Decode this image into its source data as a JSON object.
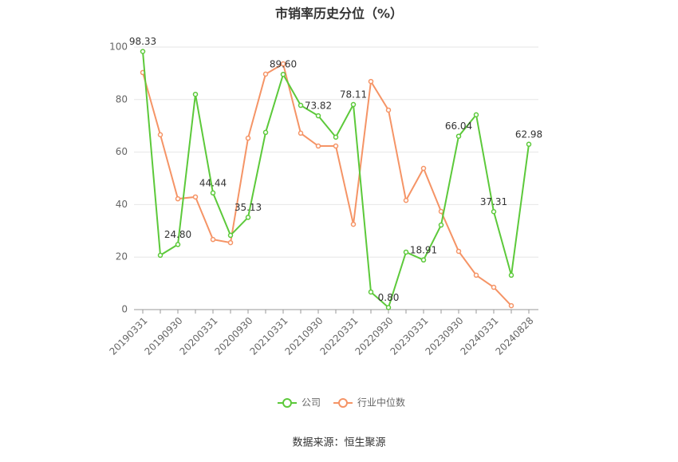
{
  "chart_data": {
    "type": "line",
    "title": "市销率历史分位（%）",
    "categories": [
      "20190331",
      null,
      "20190930",
      null,
      "20200331",
      null,
      "20200930",
      null,
      "20210331",
      null,
      "20210930",
      null,
      "20220331",
      null,
      "20220930",
      null,
      "20230331",
      null,
      "20230930",
      null,
      "20240331",
      null,
      "20240828"
    ],
    "series": [
      {
        "name": "公司",
        "color": "#5cc93a",
        "values": [
          98.33,
          20.7,
          24.8,
          82,
          44.44,
          28.3,
          35.13,
          67.5,
          89.6,
          77.8,
          73.82,
          65.7,
          78.11,
          6.7,
          0.8,
          21.9,
          18.91,
          32.2,
          66.04,
          74.2,
          37.31,
          13.1,
          62.98
        ],
        "value_labels": [
          "98.33",
          null,
          "24.80",
          null,
          "44.44",
          null,
          "35.13",
          null,
          "89.60",
          null,
          "73.82",
          null,
          "78.11",
          null,
          "0.80",
          null,
          "18.91",
          null,
          "66.04",
          null,
          "37.31",
          null,
          "62.98"
        ]
      },
      {
        "name": "行业中位数",
        "color": "#f59466",
        "values": [
          90.3,
          66.6,
          42.2,
          42.9,
          26.7,
          25.5,
          65.3,
          89.7,
          93.6,
          67.2,
          62.3,
          62.3,
          32.5,
          86.9,
          76.0,
          41.6,
          53.8,
          37.4,
          22.2,
          13.1,
          8.5,
          1.5,
          null
        ]
      }
    ],
    "ylim": [
      0,
      100
    ],
    "yticks": [
      0,
      20,
      40,
      60,
      80,
      100
    ],
    "grid": true,
    "legend": "bottom",
    "source": "数据来源：恒生聚源"
  }
}
